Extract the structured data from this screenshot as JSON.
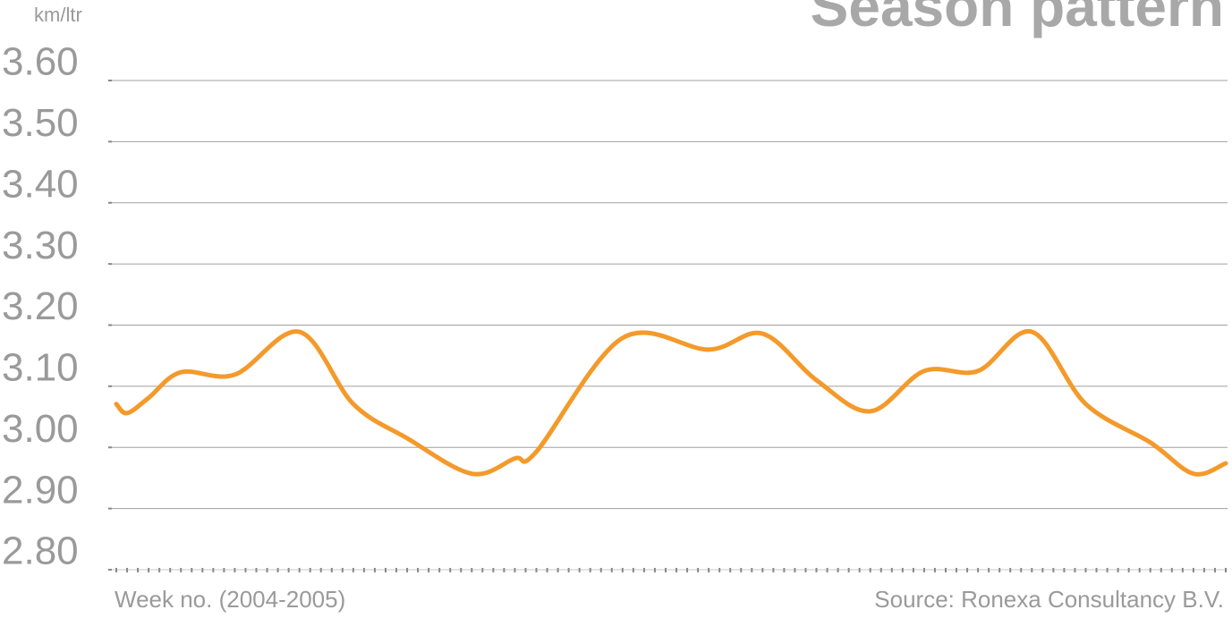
{
  "chart_data": {
    "type": "line",
    "title": "Season pattern",
    "ylabel": "km/ltr",
    "xlabel": "Week no. (2004-2005)",
    "source": "Source: Ronexa Consultancy B.V.",
    "x": [
      1,
      2,
      4,
      7,
      12,
      18,
      23,
      28,
      34,
      38,
      40,
      48,
      56,
      61,
      66,
      71,
      76,
      81,
      86,
      91,
      97,
      101,
      104
    ],
    "series": [
      {
        "name": "km/ltr",
        "color": "#f39a2b",
        "values": [
          3.071,
          3.056,
          3.081,
          3.123,
          3.119,
          3.189,
          3.071,
          3.015,
          2.957,
          2.982,
          2.993,
          3.179,
          3.16,
          3.186,
          3.11,
          3.059,
          3.125,
          3.125,
          3.189,
          3.071,
          3.008,
          2.957,
          2.974
        ]
      }
    ],
    "xlim": [
      1,
      104
    ],
    "xticks": [
      1,
      2,
      3,
      4,
      5,
      6,
      7,
      8,
      9,
      10,
      11,
      12,
      13,
      14,
      15,
      16,
      17,
      18,
      19,
      20,
      21,
      22,
      23,
      24,
      25,
      26,
      27,
      28,
      29,
      30,
      31,
      32,
      33,
      34,
      35,
      36,
      37,
      38,
      39,
      40,
      41,
      42,
      43,
      44,
      45,
      46,
      47,
      48,
      49,
      50,
      51,
      52,
      53,
      54,
      55,
      56,
      57,
      58,
      59,
      60,
      61,
      62,
      63,
      64,
      65,
      66,
      67,
      68,
      69,
      70,
      71,
      72,
      73,
      74,
      75,
      76,
      77,
      78,
      79,
      80,
      81,
      82,
      83,
      84,
      85,
      86,
      87,
      88,
      89,
      90,
      91,
      92,
      93,
      94,
      95,
      96,
      97,
      98,
      99,
      100,
      101,
      102,
      103,
      104
    ],
    "ylim": [
      2.8,
      3.6
    ],
    "yticks": [
      {
        "value": 2.8,
        "label": "2.80"
      },
      {
        "value": 2.9,
        "label": "2.90"
      },
      {
        "value": 3.0,
        "label": "3.00"
      },
      {
        "value": 3.1,
        "label": "3.10"
      },
      {
        "value": 3.2,
        "label": "3.20"
      },
      {
        "value": 3.3,
        "label": "3.30"
      },
      {
        "value": 3.4,
        "label": "3.40"
      },
      {
        "value": 3.5,
        "label": "3.50"
      },
      {
        "value": 3.6,
        "label": "3.60"
      }
    ],
    "grid": true
  }
}
